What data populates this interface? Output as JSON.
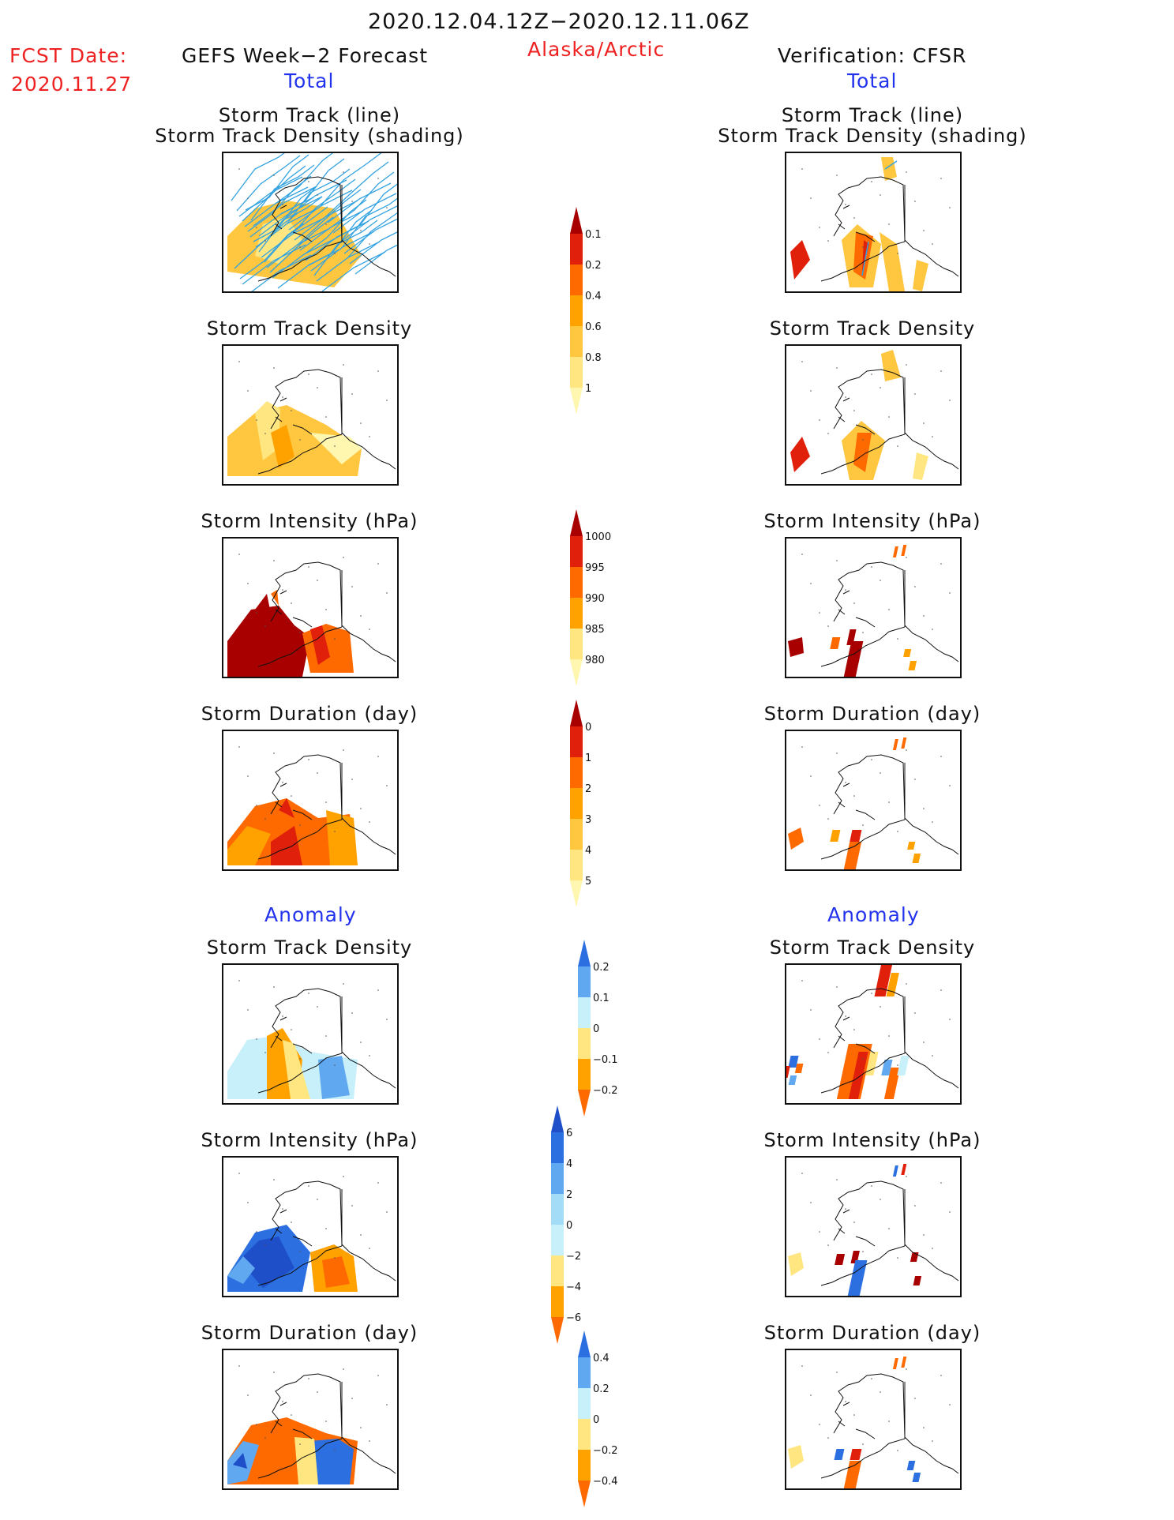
{
  "header": {
    "date_range": "2020.12.04.12Z−2020.12.11.06Z",
    "fcst_label": "FCST Date:",
    "fcst_date": "2020.11.27",
    "left_title": "GEFS Week−2 Forecast",
    "region": "Alaska/Arctic",
    "right_title": "Verification: CFSR",
    "total_left": "Total",
    "total_right": "Total",
    "anomaly_left": "Anomaly",
    "anomaly_right": "Anomaly"
  },
  "panels": {
    "track_line": "Storm Track (line)",
    "track_density_shading": "Storm Track Density (shading)",
    "track_density": "Storm Track Density",
    "intensity": "Storm Intensity (hPa)",
    "duration": "Storm Duration (day)"
  },
  "colors": {
    "y1": "#fff7b0",
    "y2": "#ffe680",
    "y3": "#ffc640",
    "y4": "#ffa200",
    "o1": "#ff6a00",
    "r1": "#e0200a",
    "r2": "#a80000",
    "b1": "#c7f0fb",
    "b2": "#a3dcf7",
    "b3": "#60a8ef",
    "b4": "#2c6fe0",
    "b5": "#1e4fc8",
    "track": "#33a3e0"
  },
  "chart_data": [
    {
      "type": "heatmap",
      "id": "cb_density",
      "extend": "both",
      "ticks": [
        "0.1",
        "0.2",
        "0.4",
        "0.6",
        "0.8",
        "1"
      ],
      "colors": [
        "#fff7b0",
        "#ffe680",
        "#ffc640",
        "#ffa200",
        "#ff6a00",
        "#e0200a",
        "#a80000"
      ]
    },
    {
      "type": "heatmap",
      "id": "cb_intensity",
      "extend": "both",
      "ticks": [
        "1000",
        "995",
        "990",
        "985",
        "980"
      ],
      "colors": [
        "#fff7b0",
        "#ffe680",
        "#ffa200",
        "#ff6a00",
        "#e0200a",
        "#a80000"
      ]
    },
    {
      "type": "heatmap",
      "id": "cb_duration",
      "extend": "both",
      "ticks": [
        "0",
        "1",
        "2",
        "3",
        "4",
        "5"
      ],
      "colors": [
        "#fff7b0",
        "#ffe680",
        "#ffc640",
        "#ffa200",
        "#ff6a00",
        "#e0200a",
        "#a80000"
      ]
    },
    {
      "type": "heatmap",
      "id": "cb_anom_density",
      "extend": "both",
      "ticks": [
        "0.2",
        "0.1",
        "0",
        "−0.1",
        "−0.2"
      ],
      "colors": [
        "#ff6a00",
        "#ffa200",
        "#ffe680",
        "#c7f0fb",
        "#60a8ef",
        "#2c6fe0"
      ]
    },
    {
      "type": "heatmap",
      "id": "cb_anom_intensity",
      "extend": "both",
      "ticks": [
        "6",
        "4",
        "2",
        "0",
        "−2",
        "−4",
        "−6"
      ],
      "colors": [
        "#ff6a00",
        "#ffa200",
        "#ffe680",
        "#c7f0fb",
        "#a3dcf7",
        "#60a8ef",
        "#2c6fe0",
        "#1e4fc8"
      ]
    },
    {
      "type": "heatmap",
      "id": "cb_anom_duration",
      "extend": "both",
      "ticks": [
        "0.4",
        "0.2",
        "0",
        "−0.2",
        "−0.4"
      ],
      "colors": [
        "#ff6a00",
        "#ffa200",
        "#ffe680",
        "#c7f0fb",
        "#60a8ef",
        "#2c6fe0"
      ]
    }
  ]
}
